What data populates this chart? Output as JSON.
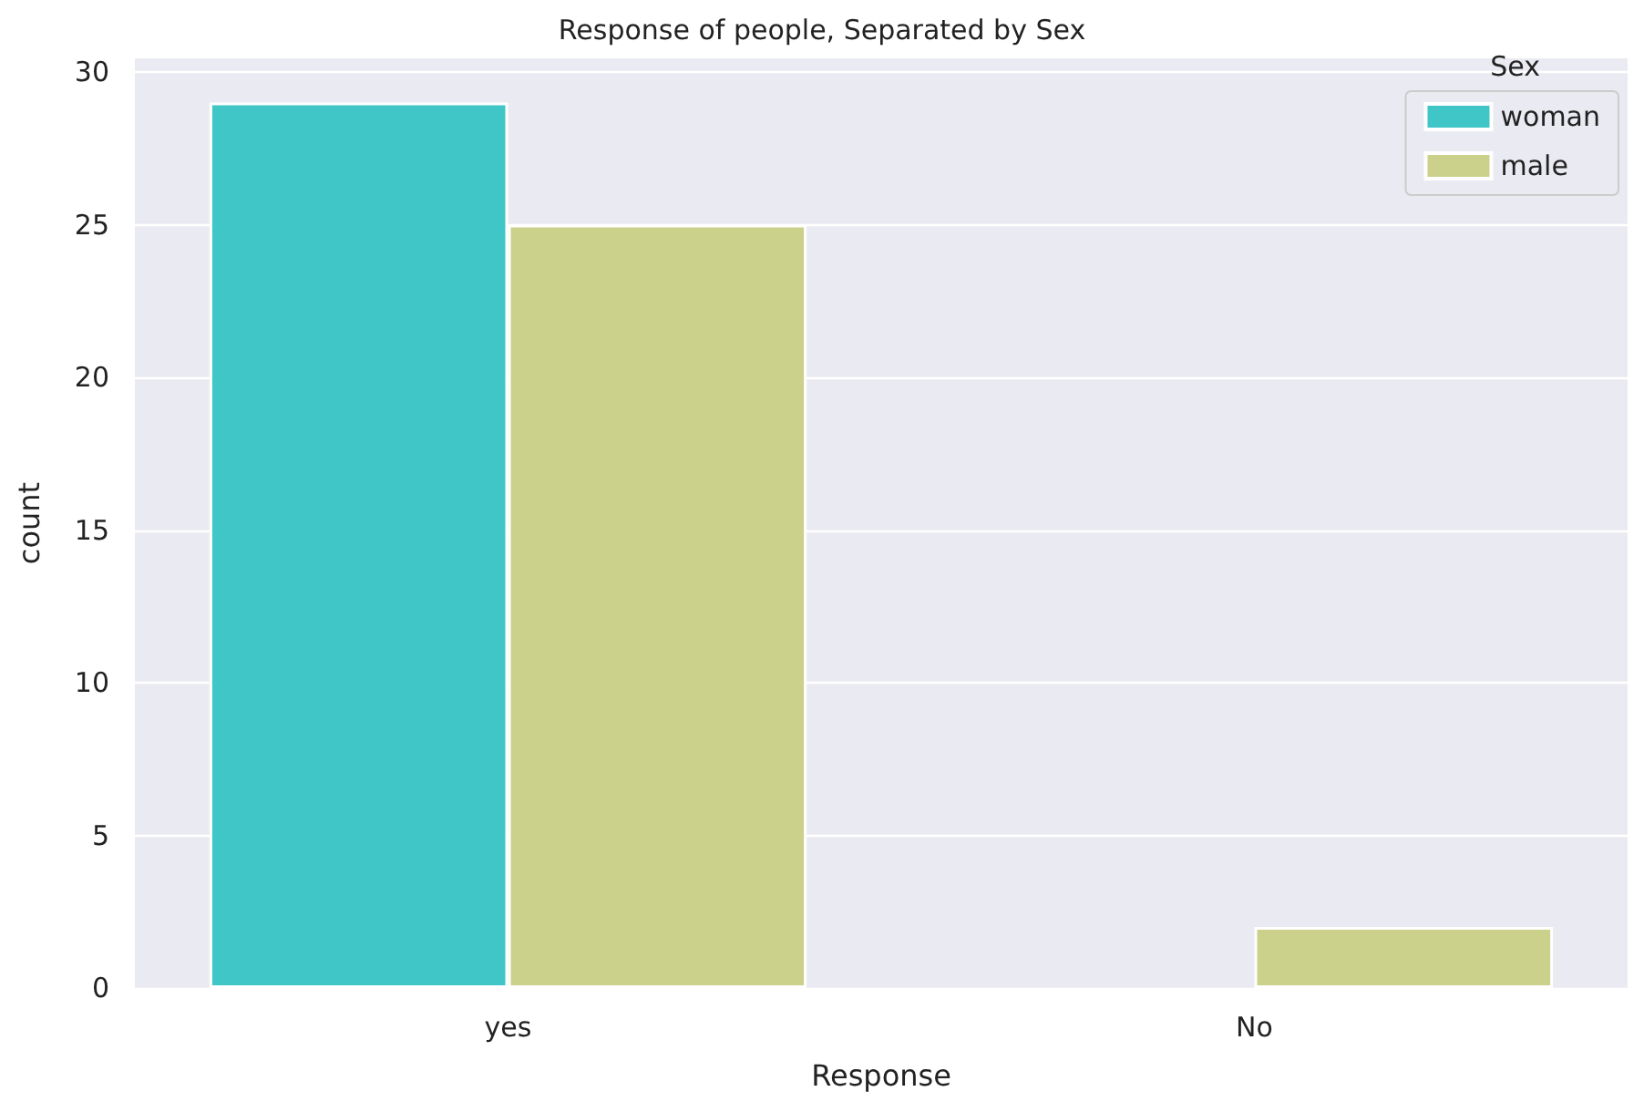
{
  "chart_data": {
    "type": "bar",
    "title": "Response of people, Separated by Sex",
    "xlabel": "Response",
    "ylabel": "count",
    "legend_title": "Sex",
    "categories": [
      "yes",
      "No"
    ],
    "series": [
      {
        "name": "woman",
        "color": "#40c6c6",
        "values": [
          29,
          null
        ]
      },
      {
        "name": "male",
        "color": "#cbd18b",
        "values": [
          25,
          2
        ]
      }
    ],
    "ylim": [
      0,
      30.45
    ],
    "yticks": [
      0,
      5,
      10,
      15,
      20,
      25,
      30
    ],
    "grid": "y",
    "legend": "top right"
  }
}
